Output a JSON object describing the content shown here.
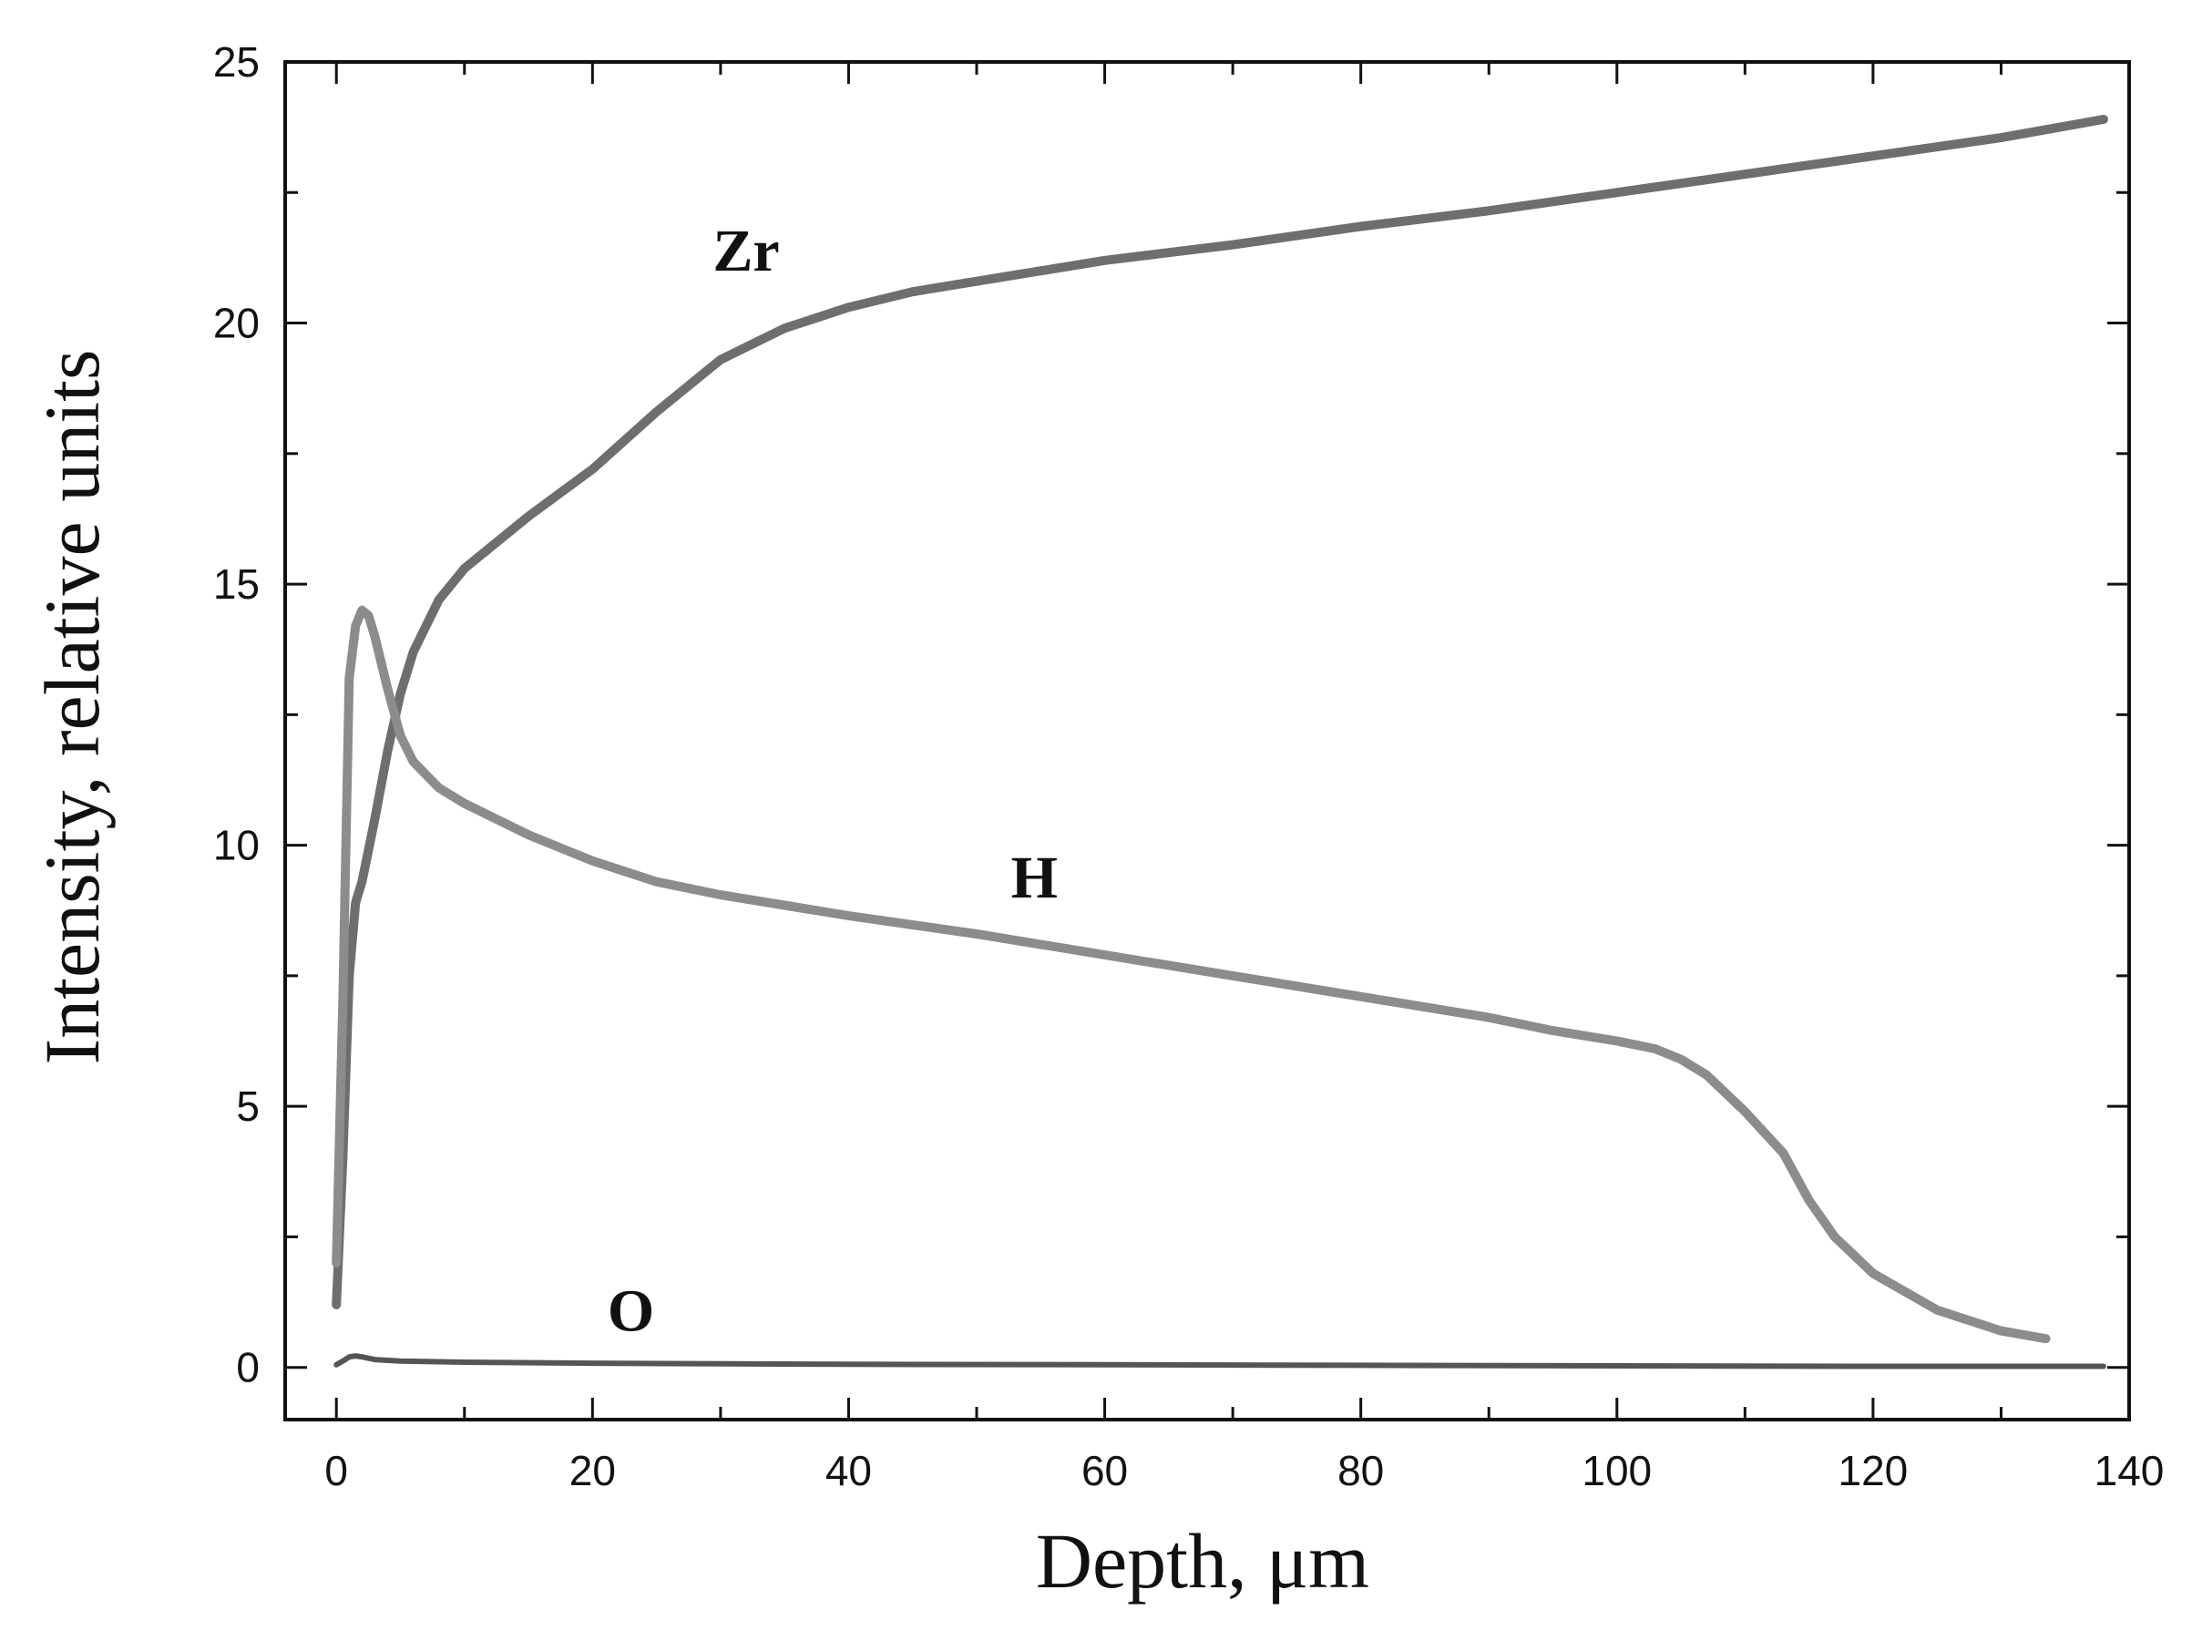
{
  "chart_data": {
    "type": "line",
    "title": "",
    "xlabel": "Depth, μm",
    "ylabel": "Intensity, relative units",
    "xlim": [
      -4,
      140
    ],
    "ylim": [
      -1,
      25
    ],
    "xticks": [
      0,
      20,
      40,
      60,
      80,
      100,
      120,
      140
    ],
    "yticks": [
      0,
      5,
      10,
      15,
      20,
      25
    ],
    "grid": false,
    "legend": "none",
    "series": [
      {
        "name": "Zr",
        "color": "#6e6e6e",
        "x": [
          0,
          0.5,
          1,
          1.5,
          2,
          3,
          4,
          5,
          6,
          8,
          10,
          12,
          15,
          20,
          25,
          30,
          35,
          40,
          45,
          50,
          60,
          70,
          80,
          90,
          100,
          110,
          120,
          130,
          138
        ],
        "y": [
          1.2,
          4,
          7.5,
          8.9,
          9.3,
          10.5,
          11.8,
          12.9,
          13.7,
          14.7,
          15.3,
          15.7,
          16.3,
          17.2,
          18.3,
          19.3,
          19.9,
          20.3,
          20.6,
          20.8,
          21.2,
          21.5,
          21.85,
          22.15,
          22.5,
          22.85,
          23.2,
          23.55,
          23.9
        ]
      },
      {
        "name": "H",
        "color": "#8c8c8c",
        "x": [
          0,
          0.5,
          1,
          1.5,
          2,
          2.5,
          3,
          4,
          5,
          6,
          8,
          10,
          15,
          20,
          25,
          30,
          40,
          50,
          60,
          70,
          80,
          90,
          95,
          100,
          103,
          105,
          107,
          110,
          113,
          115,
          117,
          120,
          125,
          130,
          133.5
        ],
        "y": [
          2,
          7,
          13.2,
          14.2,
          14.5,
          14.4,
          14,
          13,
          12.1,
          11.6,
          11.1,
          10.8,
          10.2,
          9.7,
          9.3,
          9.05,
          8.65,
          8.3,
          7.9,
          7.5,
          7.1,
          6.7,
          6.45,
          6.25,
          6.1,
          5.9,
          5.6,
          4.9,
          4.1,
          3.2,
          2.5,
          1.8,
          1.1,
          0.7,
          0.55
        ]
      },
      {
        "name": "O",
        "color": "#555555",
        "x": [
          0,
          0.5,
          1,
          1.5,
          2,
          3,
          5,
          10,
          20,
          40,
          60,
          80,
          100,
          120,
          138
        ],
        "y": [
          0.05,
          0.12,
          0.2,
          0.22,
          0.2,
          0.15,
          0.12,
          0.1,
          0.08,
          0.06,
          0.05,
          0.04,
          0.03,
          0.02,
          0.02
        ]
      }
    ],
    "annotations": [
      {
        "text": "Zr",
        "x": 32,
        "y": 21
      },
      {
        "text": "H",
        "x": 54.5,
        "y": 9
      },
      {
        "text": "O",
        "x": 23,
        "y": 0.7
      }
    ]
  }
}
